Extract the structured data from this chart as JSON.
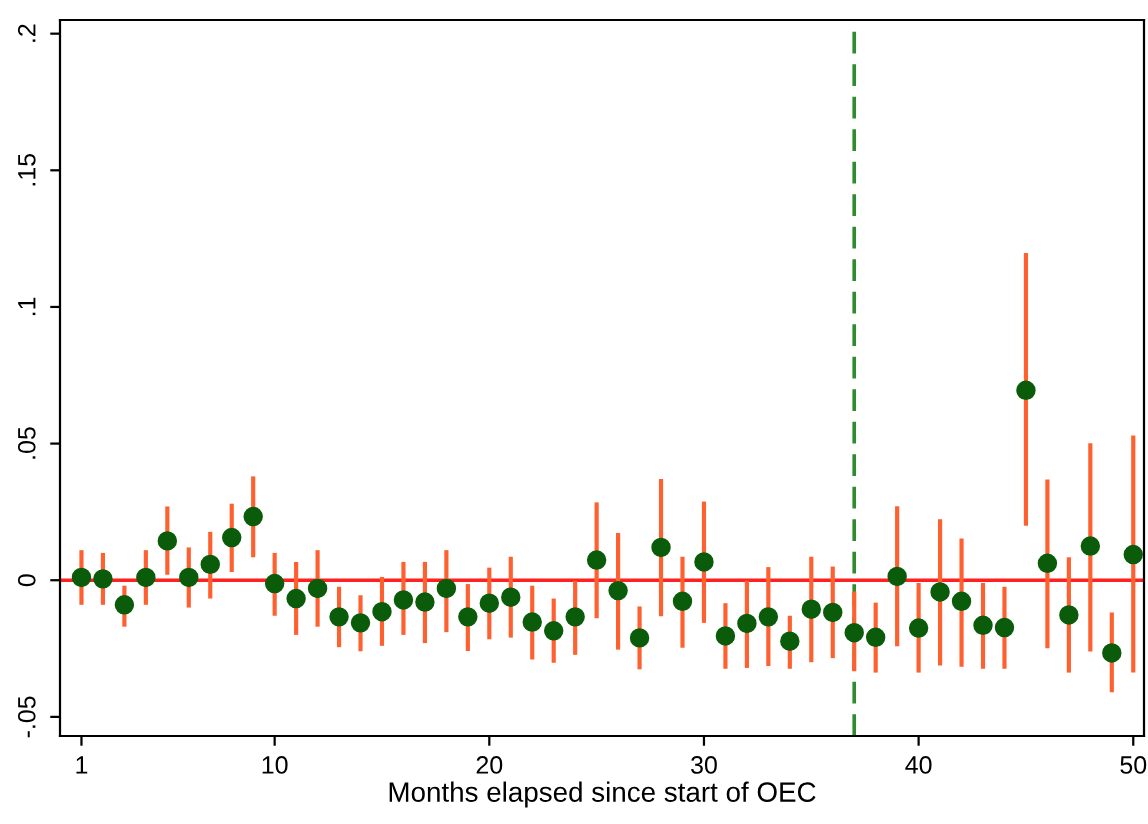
{
  "chart_data": {
    "type": "scatter",
    "xlabel": "Months elapsed since start of OEC",
    "x": [
      1,
      2,
      3,
      4,
      5,
      6,
      7,
      8,
      9,
      10,
      11,
      12,
      13,
      14,
      15,
      16,
      17,
      18,
      19,
      20,
      21,
      22,
      23,
      24,
      25,
      26,
      27,
      28,
      29,
      30,
      31,
      32,
      33,
      34,
      35,
      36,
      37,
      38,
      39,
      40,
      41,
      42,
      43,
      44,
      45,
      46,
      47,
      48,
      49,
      50
    ],
    "series": [
      {
        "color": "#0a5c0a",
        "values": [
          0.001,
          0.0005,
          -0.009,
          0.001,
          0.0144,
          0.001,
          0.0058,
          0.0156,
          0.0233,
          -0.0012,
          -0.0067,
          -0.003,
          -0.0134,
          -0.0156,
          -0.0115,
          -0.0072,
          -0.008,
          -0.003,
          -0.0134,
          -0.0084,
          -0.0062,
          -0.0153,
          -0.0185,
          -0.0134,
          0.0074,
          -0.0038,
          -0.0211,
          0.012,
          -0.0077,
          0.0067,
          -0.0204,
          -0.0158,
          -0.0134,
          -0.0223,
          -0.0106,
          -0.0118,
          -0.0192,
          -0.0209,
          0.0014,
          -0.0175,
          -0.0043,
          -0.0077,
          -0.0165,
          -0.0173,
          0.0695,
          0.0062,
          -0.0127,
          0.0125,
          -0.0266,
          0.0094
        ],
        "errors": [
          [
            -0.009,
            0.011
          ],
          [
            -0.009,
            0.01
          ],
          [
            -0.017,
            -0.002
          ],
          [
            -0.009,
            0.011
          ],
          [
            0.002,
            0.027
          ],
          [
            -0.01,
            0.012
          ],
          [
            -0.0067,
            0.0177
          ],
          [
            0.003,
            0.028
          ],
          [
            0.0084,
            0.038
          ],
          [
            -0.013,
            0.01
          ],
          [
            -0.02,
            0.0067
          ],
          [
            -0.017,
            0.011
          ],
          [
            -0.0245,
            -0.0024
          ],
          [
            -0.026,
            -0.0055
          ],
          [
            -0.024,
            0.0012
          ],
          [
            -0.02,
            0.0067
          ],
          [
            -0.023,
            0.0067
          ],
          [
            -0.019,
            0.011
          ],
          [
            -0.0259,
            -0.0014
          ],
          [
            -0.0216,
            0.0046
          ],
          [
            -0.021,
            0.0086
          ],
          [
            -0.029,
            -0.002
          ],
          [
            -0.0302,
            -0.0067
          ],
          [
            -0.0273,
            -0.0002
          ],
          [
            -0.0139,
            0.0285
          ],
          [
            -0.0254,
            0.0173
          ],
          [
            -0.0326,
            -0.0096
          ],
          [
            -0.0132,
            0.037
          ],
          [
            -0.0247,
            0.0086
          ],
          [
            -0.0156,
            0.0288
          ],
          [
            -0.0324,
            -0.0084
          ],
          [
            -0.0321,
            -0.0002
          ],
          [
            -0.0314,
            0.0048
          ],
          [
            -0.0324,
            -0.013
          ],
          [
            -0.03,
            0.0086
          ],
          [
            -0.0285,
            0.005
          ],
          [
            -0.0333,
            -0.0041
          ],
          [
            -0.0338,
            -0.0082
          ],
          [
            -0.0242,
            0.0271
          ],
          [
            -0.0338,
            -0.001
          ],
          [
            -0.0312,
            0.0223
          ],
          [
            -0.0317,
            0.0153
          ],
          [
            -0.0324,
            -0.001
          ],
          [
            -0.0324,
            -0.0024
          ],
          [
            0.0199,
            0.1197
          ],
          [
            -0.0249,
            0.0369
          ],
          [
            -0.0338,
            0.0084
          ],
          [
            -0.0261,
            0.0501
          ],
          [
            -0.041,
            -0.0118
          ],
          [
            -0.0338,
            0.053
          ]
        ]
      }
    ],
    "marker": "circle",
    "xlim": [
      0,
      50.5
    ],
    "ylim": [
      -0.057,
      0.205
    ],
    "xticks": [
      1,
      10,
      20,
      30,
      40,
      50
    ],
    "yticks": [
      {
        "value": -0.05,
        "label": "-.05"
      },
      {
        "value": 0,
        "label": "0"
      },
      {
        "value": 0.05,
        "label": ".05"
      },
      {
        "value": 0.1,
        "label": ".1"
      },
      {
        "value": 0.15,
        "label": ".15"
      },
      {
        "value": 0.2,
        "label": ".2"
      }
    ],
    "ref_lines": [
      {
        "axis": "y",
        "value": 0,
        "color": "#ff2020",
        "line_style": "solid"
      },
      {
        "axis": "x",
        "value": 37,
        "color": "#2e8b2e",
        "line_style": "dashed"
      }
    ],
    "grid": false
  }
}
